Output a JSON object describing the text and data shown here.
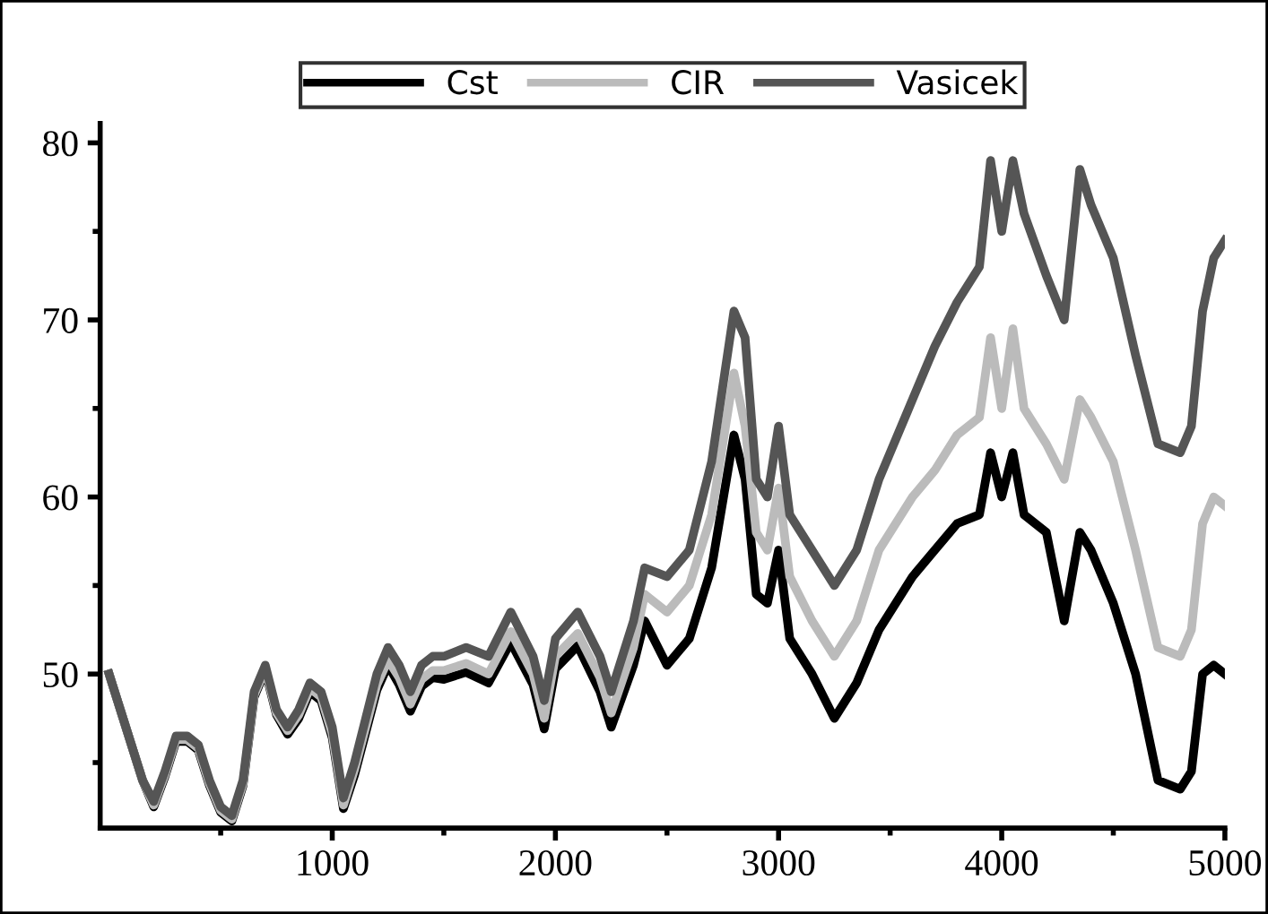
{
  "chart_data": {
    "type": "line",
    "x": [
      0,
      50,
      100,
      150,
      200,
      250,
      300,
      350,
      400,
      450,
      500,
      550,
      600,
      650,
      700,
      750,
      800,
      850,
      900,
      950,
      1000,
      1050,
      1100,
      1150,
      1200,
      1250,
      1300,
      1350,
      1400,
      1450,
      1500,
      1600,
      1700,
      1800,
      1900,
      1950,
      2000,
      2100,
      2200,
      2250,
      2350,
      2400,
      2500,
      2600,
      2700,
      2800,
      2850,
      2900,
      2950,
      3000,
      3050,
      3150,
      3250,
      3350,
      3450,
      3600,
      3700,
      3800,
      3900,
      3950,
      4000,
      4050,
      4100,
      4200,
      4280,
      4350,
      4400,
      4500,
      4600,
      4700,
      4800,
      4850,
      4900,
      4950,
      5000
    ],
    "series": [
      {
        "name": "Cst",
        "color": "#000000",
        "values": [
          50,
          48,
          46,
          44,
          42.5,
          44.2,
          46.2,
          46.2,
          45.7,
          43.7,
          42.2,
          41.7,
          43.7,
          48.7,
          50.2,
          47.7,
          46.6,
          47.5,
          49,
          48.5,
          46.4,
          42.4,
          44.3,
          46.7,
          49.1,
          50.5,
          49.4,
          47.9,
          49.3,
          49.8,
          49.7,
          50.1,
          49.5,
          51.8,
          49.4,
          46.9,
          50.3,
          51.6,
          49,
          47,
          50.5,
          53,
          50.5,
          52,
          56,
          63.5,
          61,
          54.5,
          54,
          57,
          52,
          50,
          47.5,
          49.5,
          52.5,
          55.5,
          57,
          58.5,
          59,
          62.5,
          60,
          62.5,
          59,
          58,
          53,
          58,
          57,
          54,
          50,
          44,
          43.5,
          44.5,
          50,
          50.5,
          50
        ]
      },
      {
        "name": "CIR",
        "color": "#bbbbbb",
        "values": [
          50,
          48,
          46,
          44,
          42.6,
          44.3,
          46.3,
          46.3,
          45.8,
          43.8,
          42.3,
          41.8,
          43.8,
          48.8,
          50.3,
          47.8,
          46.8,
          47.7,
          49.2,
          48.7,
          46.6,
          42.6,
          44.6,
          47,
          49.4,
          50.8,
          49.8,
          48.3,
          49.7,
          50.2,
          50.2,
          50.6,
          50,
          52.4,
          50,
          47.5,
          51,
          52.3,
          49.8,
          47.8,
          51.5,
          54.5,
          53.5,
          55,
          59,
          67,
          64,
          58,
          57,
          60.5,
          55.5,
          53,
          51,
          53,
          57,
          60,
          61.5,
          63.5,
          64.5,
          69,
          65,
          69.5,
          65,
          63,
          61,
          65.5,
          64.5,
          62,
          57,
          51.5,
          51,
          52.5,
          58.5,
          60,
          59.5
        ]
      },
      {
        "name": "Vasicek",
        "color": "#555555",
        "values": [
          50,
          48,
          46,
          44,
          42.8,
          44.5,
          46.5,
          46.5,
          46,
          44,
          42.5,
          42,
          44,
          49,
          50.5,
          48,
          47,
          48,
          49.5,
          49,
          47,
          43,
          45,
          47.5,
          50,
          51.5,
          50.5,
          49,
          50.5,
          51,
          51,
          51.5,
          51,
          53.5,
          51,
          48.5,
          52,
          53.5,
          51,
          49,
          53,
          56,
          55.5,
          57,
          62,
          70.5,
          69,
          61,
          60,
          64,
          59,
          57,
          55,
          57,
          61,
          65.5,
          68.5,
          71,
          73,
          79,
          75,
          79,
          76,
          72.5,
          70,
          78.5,
          76.5,
          73.5,
          68,
          63,
          62.5,
          64,
          70.5,
          73.5,
          74.5
        ]
      }
    ],
    "xlim": [
      -40,
      5000
    ],
    "xticks": [
      {
        "value": 500,
        "label": null
      },
      1000,
      {
        "value": 1500,
        "label": null
      },
      2000,
      {
        "value": 2500,
        "label": null
      },
      3000,
      {
        "value": 3500,
        "label": null
      },
      4000,
      {
        "value": 4500,
        "label": null
      },
      5000
    ],
    "ylim": [
      41.3,
      81.1
    ],
    "yticks": [
      {
        "value": 45,
        "label": null
      },
      50,
      {
        "value": 55,
        "label": null
      },
      60,
      {
        "value": 65,
        "label": null
      },
      70,
      {
        "value": 75,
        "label": null
      },
      80
    ],
    "grid": false,
    "legend": "top",
    "marker": "none",
    "line_style": "solid"
  }
}
